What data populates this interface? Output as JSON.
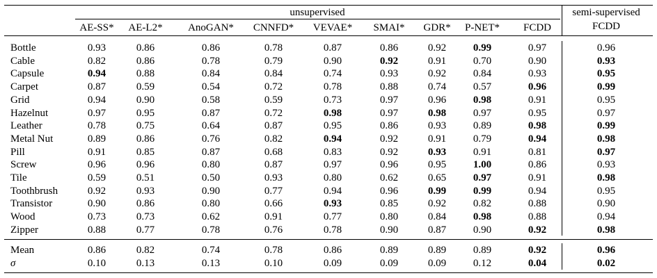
{
  "table": {
    "group_unsupervised": "unsupervised",
    "group_semi_line1": "semi-supervised",
    "group_semi_line2": "FCDD",
    "columns": [
      "AE-SS*",
      "AE-L2*",
      "AnoGAN*",
      "CNNFD*",
      "VEVAE*",
      "SMAI*",
      "GDR*",
      "P-NET*",
      "FCDD"
    ],
    "rows": [
      {
        "label": "Bottle",
        "values": [
          "0.93",
          "0.86",
          "0.86",
          "0.78",
          "0.87",
          "0.86",
          "0.92",
          "0.99",
          "0.97",
          "0.96"
        ],
        "bold": [
          7
        ]
      },
      {
        "label": "Cable",
        "values": [
          "0.82",
          "0.86",
          "0.78",
          "0.79",
          "0.90",
          "0.92",
          "0.91",
          "0.70",
          "0.90",
          "0.93"
        ],
        "bold": [
          5,
          9
        ]
      },
      {
        "label": "Capsule",
        "values": [
          "0.94",
          "0.88",
          "0.84",
          "0.84",
          "0.74",
          "0.93",
          "0.92",
          "0.84",
          "0.93",
          "0.95"
        ],
        "bold": [
          0,
          9
        ]
      },
      {
        "label": "Carpet",
        "values": [
          "0.87",
          "0.59",
          "0.54",
          "0.72",
          "0.78",
          "0.88",
          "0.74",
          "0.57",
          "0.96",
          "0.99"
        ],
        "bold": [
          8,
          9
        ]
      },
      {
        "label": "Grid",
        "values": [
          "0.94",
          "0.90",
          "0.58",
          "0.59",
          "0.73",
          "0.97",
          "0.96",
          "0.98",
          "0.91",
          "0.95"
        ],
        "bold": [
          7
        ]
      },
      {
        "label": "Hazelnut",
        "values": [
          "0.97",
          "0.95",
          "0.87",
          "0.72",
          "0.98",
          "0.97",
          "0.98",
          "0.97",
          "0.95",
          "0.97"
        ],
        "bold": [
          4,
          6
        ]
      },
      {
        "label": "Leather",
        "values": [
          "0.78",
          "0.75",
          "0.64",
          "0.87",
          "0.95",
          "0.86",
          "0.93",
          "0.89",
          "0.98",
          "0.99"
        ],
        "bold": [
          8,
          9
        ]
      },
      {
        "label": "Metal Nut",
        "values": [
          "0.89",
          "0.86",
          "0.76",
          "0.82",
          "0.94",
          "0.92",
          "0.91",
          "0.79",
          "0.94",
          "0.98"
        ],
        "bold": [
          4,
          8,
          9
        ]
      },
      {
        "label": "Pill",
        "values": [
          "0.91",
          "0.85",
          "0.87",
          "0.68",
          "0.83",
          "0.92",
          "0.93",
          "0.91",
          "0.81",
          "0.97"
        ],
        "bold": [
          6,
          9
        ]
      },
      {
        "label": "Screw",
        "values": [
          "0.96",
          "0.96",
          "0.80",
          "0.87",
          "0.97",
          "0.96",
          "0.95",
          "1.00",
          "0.86",
          "0.93"
        ],
        "bold": [
          7
        ]
      },
      {
        "label": "Tile",
        "values": [
          "0.59",
          "0.51",
          "0.50",
          "0.93",
          "0.80",
          "0.62",
          "0.65",
          "0.97",
          "0.91",
          "0.98"
        ],
        "bold": [
          7,
          9
        ]
      },
      {
        "label": "Toothbrush",
        "values": [
          "0.92",
          "0.93",
          "0.90",
          "0.77",
          "0.94",
          "0.96",
          "0.99",
          "0.99",
          "0.94",
          "0.95"
        ],
        "bold": [
          6,
          7
        ]
      },
      {
        "label": "Transistor",
        "values": [
          "0.90",
          "0.86",
          "0.80",
          "0.66",
          "0.93",
          "0.85",
          "0.92",
          "0.82",
          "0.88",
          "0.90"
        ],
        "bold": [
          4
        ]
      },
      {
        "label": "Wood",
        "values": [
          "0.73",
          "0.73",
          "0.62",
          "0.91",
          "0.77",
          "0.80",
          "0.84",
          "0.98",
          "0.88",
          "0.94"
        ],
        "bold": [
          7
        ]
      },
      {
        "label": "Zipper",
        "values": [
          "0.88",
          "0.77",
          "0.78",
          "0.76",
          "0.78",
          "0.90",
          "0.87",
          "0.90",
          "0.92",
          "0.98"
        ],
        "bold": [
          8,
          9
        ]
      }
    ],
    "summary": [
      {
        "label": "Mean",
        "values": [
          "0.86",
          "0.82",
          "0.74",
          "0.78",
          "0.86",
          "0.89",
          "0.89",
          "0.89",
          "0.92",
          "0.96"
        ],
        "bold": [
          8,
          9
        ],
        "italic": false
      },
      {
        "label": "σ",
        "values": [
          "0.10",
          "0.13",
          "0.13",
          "0.10",
          "0.09",
          "0.09",
          "0.09",
          "0.12",
          "0.04",
          "0.02"
        ],
        "bold": [
          8,
          9
        ],
        "italic": true
      }
    ]
  }
}
